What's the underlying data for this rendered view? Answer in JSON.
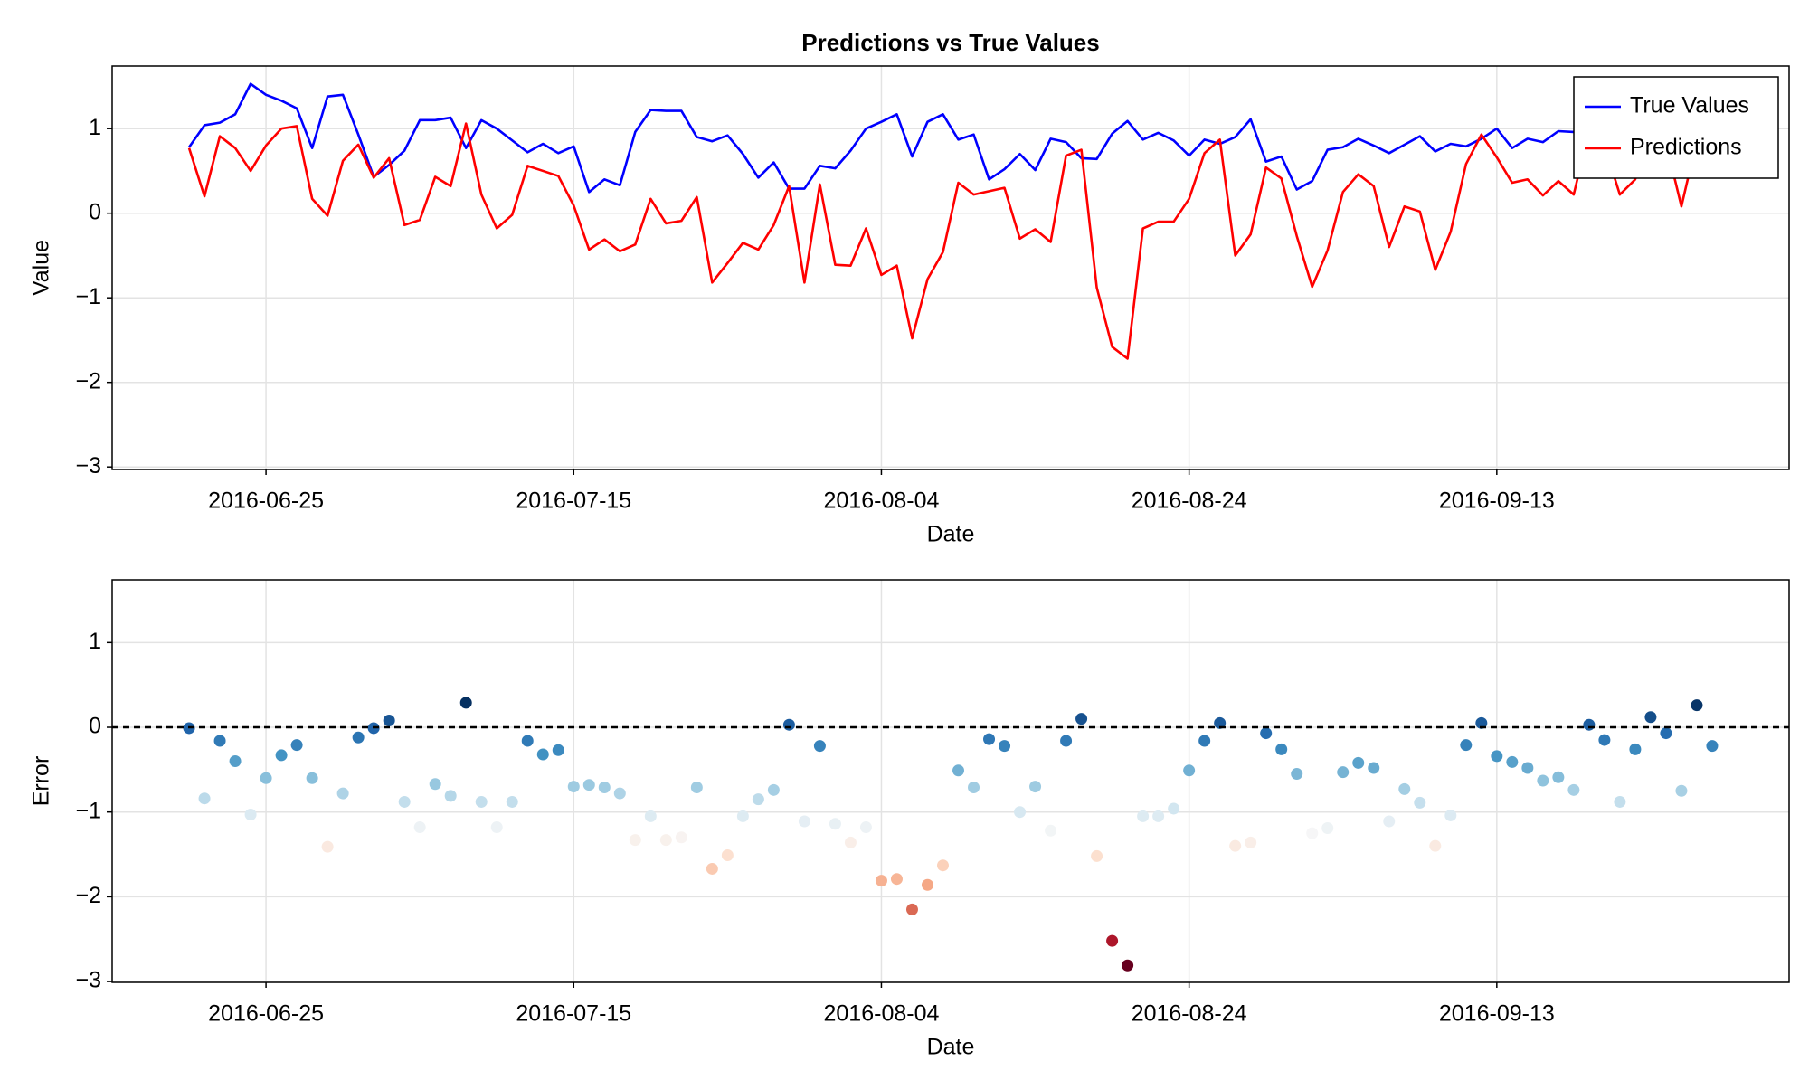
{
  "chart_data": [
    {
      "type": "line",
      "title": "Predictions vs True Values",
      "xlabel": "Date",
      "ylabel": "Value",
      "x": [
        "2016-06-20",
        "2016-06-21",
        "2016-06-22",
        "2016-06-23",
        "2016-06-24",
        "2016-06-25",
        "2016-06-26",
        "2016-06-27",
        "2016-06-28",
        "2016-06-29",
        "2016-06-30",
        "2016-07-01",
        "2016-07-02",
        "2016-07-03",
        "2016-07-04",
        "2016-07-05",
        "2016-07-06",
        "2016-07-07",
        "2016-07-08",
        "2016-07-09",
        "2016-07-10",
        "2016-07-11",
        "2016-07-12",
        "2016-07-13",
        "2016-07-14",
        "2016-07-15",
        "2016-07-16",
        "2016-07-17",
        "2016-07-18",
        "2016-07-19",
        "2016-07-20",
        "2016-07-21",
        "2016-07-22",
        "2016-07-23",
        "2016-07-24",
        "2016-07-25",
        "2016-07-26",
        "2016-07-27",
        "2016-07-28",
        "2016-07-29",
        "2016-07-30",
        "2016-07-31",
        "2016-08-01",
        "2016-08-02",
        "2016-08-03",
        "2016-08-04",
        "2016-08-05",
        "2016-08-06",
        "2016-08-07",
        "2016-08-08",
        "2016-08-09",
        "2016-08-10",
        "2016-08-11",
        "2016-08-12",
        "2016-08-13",
        "2016-08-14",
        "2016-08-15",
        "2016-08-16",
        "2016-08-17",
        "2016-08-18",
        "2016-08-19",
        "2016-08-20",
        "2016-08-21",
        "2016-08-22",
        "2016-08-23",
        "2016-08-24",
        "2016-08-25",
        "2016-08-26",
        "2016-08-27",
        "2016-08-28",
        "2016-08-29",
        "2016-08-30",
        "2016-08-31",
        "2016-09-01",
        "2016-09-02",
        "2016-09-03",
        "2016-09-04",
        "2016-09-05",
        "2016-09-06",
        "2016-09-07",
        "2016-09-08",
        "2016-09-09",
        "2016-09-10",
        "2016-09-11",
        "2016-09-12",
        "2016-09-13",
        "2016-09-14",
        "2016-09-15",
        "2016-09-16",
        "2016-09-17",
        "2016-09-18",
        "2016-09-19",
        "2016-09-20",
        "2016-09-21",
        "2016-09-22",
        "2016-09-23",
        "2016-09-24",
        "2016-09-25",
        "2016-09-26",
        "2016-09-27"
      ],
      "series": [
        {
          "name": "True Values",
          "color": "#0000ff",
          "values": [
            0.78,
            1.04,
            1.07,
            1.17,
            1.53,
            1.4,
            1.33,
            1.24,
            0.77,
            1.38,
            1.4,
            0.93,
            0.43,
            0.57,
            0.74,
            1.1,
            1.1,
            1.13,
            0.77,
            1.1,
            1.0,
            0.86,
            0.72,
            0.82,
            0.71,
            0.79,
            0.25,
            0.4,
            0.33,
            0.96,
            1.22,
            1.21,
            1.21,
            0.9,
            0.85,
            0.92,
            0.7,
            0.42,
            0.6,
            0.29,
            0.29,
            0.56,
            0.53,
            0.74,
            1.0,
            1.08,
            1.17,
            0.67,
            1.08,
            1.17,
            0.87,
            0.93,
            0.4,
            0.52,
            0.7,
            0.51,
            0.88,
            0.84,
            0.65,
            0.64,
            0.94,
            1.09,
            0.87,
            0.95,
            0.86,
            0.68,
            0.87,
            0.82,
            0.9,
            1.11,
            0.61,
            0.67,
            0.28,
            0.38,
            0.75,
            0.78,
            0.88,
            0.8,
            0.71,
            0.81,
            0.91,
            0.73,
            0.82,
            0.79,
            0.88,
            1.0,
            0.77,
            0.88,
            0.84,
            0.97,
            0.96,
            0.95,
            0.95,
            1.1,
            0.66,
            0.85,
            0.9,
            0.83,
            0.6,
            0.9
          ]
        },
        {
          "name": "Predictions",
          "color": "#ff0000",
          "values": [
            0.77,
            0.2,
            0.91,
            0.77,
            0.5,
            0.8,
            1.0,
            1.03,
            0.17,
            -0.03,
            0.62,
            0.81,
            0.42,
            0.65,
            -0.14,
            -0.08,
            0.43,
            0.32,
            1.06,
            0.22,
            -0.18,
            -0.02,
            0.56,
            0.5,
            0.44,
            0.09,
            -0.43,
            -0.31,
            -0.45,
            -0.37,
            0.17,
            -0.12,
            -0.09,
            0.19,
            -0.82,
            -0.59,
            -0.35,
            -0.43,
            -0.14,
            0.32,
            -0.82,
            0.34,
            -0.61,
            -0.62,
            -0.18,
            -0.73,
            -0.62,
            -1.48,
            -0.78,
            -0.46,
            0.36,
            0.22,
            0.26,
            0.3,
            -0.3,
            -0.19,
            -0.34,
            0.68,
            0.75,
            -0.88,
            -1.58,
            -1.72,
            -0.18,
            -0.1,
            -0.1,
            0.17,
            0.71,
            0.87,
            -0.5,
            -0.25,
            0.54,
            0.41,
            -0.27,
            -0.87,
            -0.44,
            0.25,
            0.46,
            0.32,
            -0.4,
            0.08,
            0.02,
            -0.67,
            -0.22,
            0.58,
            0.93,
            0.66,
            0.36,
            0.4,
            0.21,
            0.38,
            0.22,
            0.98,
            0.8,
            0.22,
            0.4,
            0.97,
            0.83,
            0.08,
            0.86,
            0.68
          ]
        }
      ],
      "xlim": [
        "2016-06-15",
        "2016-10-02"
      ],
      "xticks": [
        "2016-06-25",
        "2016-07-15",
        "2016-08-04",
        "2016-08-24",
        "2016-09-13"
      ],
      "ylim": [
        -3.03,
        1.74
      ],
      "yticks": [
        {
          "value": -3,
          "label": "−3"
        },
        {
          "value": -2,
          "label": "−2"
        },
        {
          "value": -1,
          "label": "−1"
        },
        0,
        1
      ],
      "grid": true,
      "legend": "top-right"
    },
    {
      "type": "scatter",
      "xlabel": "Date",
      "ylabel": "Error",
      "x": [
        "2016-06-20",
        "2016-06-21",
        "2016-06-22",
        "2016-06-23",
        "2016-06-24",
        "2016-06-25",
        "2016-06-26",
        "2016-06-27",
        "2016-06-28",
        "2016-06-29",
        "2016-06-30",
        "2016-07-01",
        "2016-07-02",
        "2016-07-03",
        "2016-07-04",
        "2016-07-05",
        "2016-07-06",
        "2016-07-07",
        "2016-07-08",
        "2016-07-09",
        "2016-07-10",
        "2016-07-11",
        "2016-07-12",
        "2016-07-13",
        "2016-07-14",
        "2016-07-15",
        "2016-07-16",
        "2016-07-17",
        "2016-07-18",
        "2016-07-19",
        "2016-07-20",
        "2016-07-21",
        "2016-07-22",
        "2016-07-23",
        "2016-07-24",
        "2016-07-25",
        "2016-07-26",
        "2016-07-27",
        "2016-07-28",
        "2016-07-29",
        "2016-07-30",
        "2016-07-31",
        "2016-08-01",
        "2016-08-02",
        "2016-08-03",
        "2016-08-04",
        "2016-08-05",
        "2016-08-06",
        "2016-08-07",
        "2016-08-08",
        "2016-08-09",
        "2016-08-10",
        "2016-08-11",
        "2016-08-12",
        "2016-08-13",
        "2016-08-14",
        "2016-08-15",
        "2016-08-16",
        "2016-08-17",
        "2016-08-18",
        "2016-08-19",
        "2016-08-20",
        "2016-08-21",
        "2016-08-22",
        "2016-08-23",
        "2016-08-24",
        "2016-08-25",
        "2016-08-26",
        "2016-08-27",
        "2016-08-28",
        "2016-08-29",
        "2016-08-30",
        "2016-08-31",
        "2016-09-01",
        "2016-09-02",
        "2016-09-03",
        "2016-09-04",
        "2016-09-05",
        "2016-09-06",
        "2016-09-07",
        "2016-09-08",
        "2016-09-09",
        "2016-09-10",
        "2016-09-11",
        "2016-09-12",
        "2016-09-13",
        "2016-09-14",
        "2016-09-15",
        "2016-09-16",
        "2016-09-17",
        "2016-09-18",
        "2016-09-19",
        "2016-09-20",
        "2016-09-21",
        "2016-09-22",
        "2016-09-23",
        "2016-09-24",
        "2016-09-25",
        "2016-09-26",
        "2016-09-27"
      ],
      "values": [
        -0.01,
        -0.84,
        -0.16,
        -0.4,
        -1.03,
        -0.6,
        -0.33,
        -0.21,
        -0.6,
        -1.41,
        -0.78,
        -0.12,
        -0.01,
        0.08,
        -0.88,
        -1.18,
        -0.67,
        -0.81,
        0.29,
        -0.88,
        -1.18,
        -0.88,
        -0.16,
        -0.32,
        -0.27,
        -0.7,
        -0.68,
        -0.71,
        -0.78,
        -1.33,
        -1.05,
        -1.33,
        -1.3,
        -0.71,
        -1.67,
        -1.51,
        -1.05,
        -0.85,
        -0.74,
        0.03,
        -1.11,
        -0.22,
        -1.14,
        -1.36,
        -1.18,
        -1.81,
        -1.79,
        -2.15,
        -1.86,
        -1.63,
        -0.51,
        -0.71,
        -0.14,
        -0.22,
        -1.0,
        -0.7,
        -1.22,
        -0.16,
        0.1,
        -1.52,
        -2.52,
        -2.81,
        -1.05,
        -1.05,
        -0.96,
        -0.51,
        -0.16,
        0.05,
        -1.4,
        -1.36,
        -0.07,
        -0.26,
        -0.55,
        -1.25,
        -1.19,
        -0.53,
        -0.42,
        -0.48,
        -1.11,
        -0.73,
        -0.89,
        -1.4,
        -1.04,
        -0.21,
        0.05,
        -0.34,
        -0.41,
        -0.48,
        -0.63,
        -0.59,
        -0.74,
        0.03,
        -0.15,
        -0.88,
        -0.26,
        0.12,
        -0.07,
        -0.75,
        0.26,
        -0.22
      ],
      "colormap": [
        "#67001f",
        "#b2182b",
        "#d6604d",
        "#f4a582",
        "#fddbc7",
        "#f7f7f7",
        "#d1e5f0",
        "#92c5de",
        "#4393c3",
        "#2166ac",
        "#053061"
      ],
      "hline": 0,
      "xlim": [
        "2016-06-15",
        "2016-10-02"
      ],
      "xticks": [
        "2016-06-25",
        "2016-07-15",
        "2016-08-04",
        "2016-08-24",
        "2016-09-13"
      ],
      "ylim": [
        -3.01,
        1.74
      ],
      "yticks": [
        {
          "value": -3,
          "label": "−3"
        },
        {
          "value": -2,
          "label": "−2"
        },
        {
          "value": -1,
          "label": "−1"
        },
        0,
        1
      ],
      "grid": true
    }
  ]
}
